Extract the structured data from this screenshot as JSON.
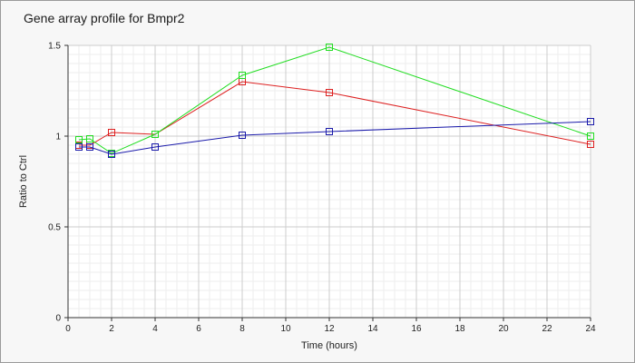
{
  "chart_data": {
    "type": "line",
    "title": "Gene array profile for Bmpr2",
    "xlabel": "Time (hours)",
    "ylabel": "Ratio to Ctrl",
    "xlim": [
      0,
      24
    ],
    "ylim": [
      0,
      1.5
    ],
    "x_ticks": [
      0,
      2,
      4,
      6,
      8,
      10,
      12,
      14,
      16,
      18,
      20,
      22,
      24
    ],
    "y_ticks": [
      0,
      0.5,
      1,
      1.5
    ],
    "y_tick_labels": [
      "0",
      "0.5",
      "1",
      "1.5"
    ],
    "grid": true,
    "legend": "none",
    "series": [
      {
        "color": "#dd2020",
        "x": [
          0.5,
          1,
          2,
          4,
          8,
          12,
          24
        ],
        "y": [
          0.95,
          0.95,
          1.02,
          1.01,
          1.3,
          1.24,
          0.955
        ]
      },
      {
        "color": "#22dd22",
        "x": [
          0.5,
          1,
          2,
          4,
          8,
          12,
          24
        ],
        "y": [
          0.98,
          0.985,
          0.905,
          1.01,
          1.335,
          1.49,
          1.0
        ]
      },
      {
        "color": "#1a1aaa",
        "x": [
          0.5,
          1,
          2,
          4,
          8,
          12,
          24
        ],
        "y": [
          0.94,
          0.94,
          0.9,
          0.94,
          1.005,
          1.025,
          1.08
        ]
      }
    ]
  }
}
